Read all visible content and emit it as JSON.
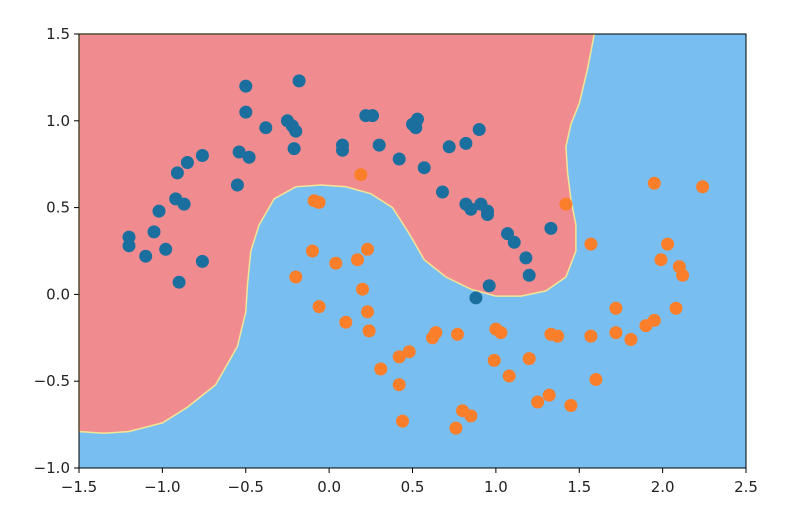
{
  "chart_data": {
    "type": "scatter",
    "title": "",
    "xlabel": "",
    "ylabel": "",
    "xlim": [
      -1.5,
      2.5
    ],
    "ylim": [
      -1.0,
      1.5
    ],
    "grid": false,
    "legend": "none",
    "xticks": [
      -1.5,
      -1.0,
      -0.5,
      0.0,
      0.5,
      1.0,
      1.5,
      2.0,
      2.5
    ],
    "xtick_labels": [
      "−1.5",
      "−1.0",
      "−0.5",
      "0.0",
      "0.5",
      "1.0",
      "1.5",
      "2.0",
      "2.5"
    ],
    "yticks": [
      -1.0,
      -0.5,
      0.0,
      0.5,
      1.0,
      1.5
    ],
    "ytick_labels": [
      "−1.0",
      "−0.5",
      "0.0",
      "0.5",
      "1.0",
      "1.5"
    ],
    "regions": [
      {
        "class": 0,
        "color": "#f08c90",
        "boundary": [
          [
            1.59,
            1.5
          ],
          [
            1.55,
            1.3
          ],
          [
            1.5,
            1.1
          ],
          [
            1.45,
            0.98
          ],
          [
            1.42,
            0.85
          ],
          [
            1.43,
            0.7
          ],
          [
            1.45,
            0.55
          ],
          [
            1.48,
            0.4
          ],
          [
            1.48,
            0.25
          ],
          [
            1.42,
            0.1
          ],
          [
            1.3,
            0.02
          ],
          [
            1.15,
            -0.01
          ],
          [
            1.0,
            -0.01
          ],
          [
            0.85,
            0.03
          ],
          [
            0.7,
            0.1
          ],
          [
            0.57,
            0.2
          ],
          [
            0.48,
            0.35
          ],
          [
            0.38,
            0.5
          ],
          [
            0.25,
            0.58
          ],
          [
            0.1,
            0.62
          ],
          [
            -0.05,
            0.63
          ],
          [
            -0.2,
            0.62
          ],
          [
            -0.33,
            0.55
          ],
          [
            -0.42,
            0.4
          ],
          [
            -0.47,
            0.25
          ],
          [
            -0.49,
            0.05
          ],
          [
            -0.5,
            -0.1
          ],
          [
            -0.55,
            -0.3
          ],
          [
            -0.68,
            -0.52
          ],
          [
            -0.85,
            -0.65
          ],
          [
            -1.0,
            -0.74
          ],
          [
            -1.2,
            -0.79
          ],
          [
            -1.35,
            -0.8
          ],
          [
            -1.5,
            -0.79
          ]
        ]
      },
      {
        "class": 1,
        "color": "#79bef0"
      }
    ],
    "series": [
      {
        "class": 0,
        "color": "#1a6f9f",
        "points": [
          [
            -1.2,
            0.33
          ],
          [
            -1.2,
            0.28
          ],
          [
            -1.1,
            0.22
          ],
          [
            -1.05,
            0.36
          ],
          [
            -1.02,
            0.48
          ],
          [
            -0.98,
            0.26
          ],
          [
            -0.92,
            0.55
          ],
          [
            -0.87,
            0.52
          ],
          [
            -0.9,
            0.07
          ],
          [
            -0.91,
            0.7
          ],
          [
            -0.85,
            0.76
          ],
          [
            -0.76,
            0.8
          ],
          [
            -0.76,
            0.19
          ],
          [
            -0.55,
            0.63
          ],
          [
            -0.54,
            0.82
          ],
          [
            -0.48,
            0.79
          ],
          [
            -0.5,
            1.2
          ],
          [
            -0.5,
            1.05
          ],
          [
            -0.38,
            0.96
          ],
          [
            -0.25,
            1.0
          ],
          [
            -0.22,
            0.97
          ],
          [
            -0.2,
            0.94
          ],
          [
            -0.21,
            0.84
          ],
          [
            -0.18,
            1.23
          ],
          [
            0.08,
            0.86
          ],
          [
            0.08,
            0.83
          ],
          [
            0.22,
            1.03
          ],
          [
            0.26,
            1.03
          ],
          [
            0.3,
            0.86
          ],
          [
            0.42,
            0.78
          ],
          [
            0.5,
            0.98
          ],
          [
            0.52,
            0.99
          ],
          [
            0.53,
            1.01
          ],
          [
            0.52,
            0.96
          ],
          [
            0.57,
            0.73
          ],
          [
            0.68,
            0.59
          ],
          [
            0.72,
            0.85
          ],
          [
            0.82,
            0.87
          ],
          [
            0.9,
            0.95
          ],
          [
            0.82,
            0.52
          ],
          [
            0.85,
            0.49
          ],
          [
            0.91,
            0.52
          ],
          [
            0.95,
            0.46
          ],
          [
            0.95,
            0.48
          ],
          [
            1.07,
            0.35
          ],
          [
            1.11,
            0.3
          ],
          [
            1.18,
            0.21
          ],
          [
            1.2,
            0.11
          ],
          [
            1.33,
            0.38
          ],
          [
            0.96,
            0.05
          ],
          [
            0.88,
            -0.02
          ]
        ]
      },
      {
        "class": 1,
        "color": "#fb7f2a",
        "points": [
          [
            -0.09,
            0.54
          ],
          [
            -0.06,
            0.53
          ],
          [
            -0.1,
            0.25
          ],
          [
            -0.2,
            0.1
          ],
          [
            -0.06,
            -0.07
          ],
          [
            0.04,
            0.18
          ],
          [
            0.1,
            -0.16
          ],
          [
            0.17,
            0.2
          ],
          [
            0.19,
            0.69
          ],
          [
            0.23,
            0.26
          ],
          [
            0.2,
            0.03
          ],
          [
            0.23,
            -0.1
          ],
          [
            0.24,
            -0.21
          ],
          [
            0.31,
            -0.43
          ],
          [
            0.42,
            -0.36
          ],
          [
            0.42,
            -0.52
          ],
          [
            0.44,
            -0.73
          ],
          [
            0.48,
            -0.33
          ],
          [
            0.62,
            -0.25
          ],
          [
            0.64,
            -0.22
          ],
          [
            0.77,
            -0.23
          ],
          [
            0.8,
            -0.67
          ],
          [
            0.85,
            -0.7
          ],
          [
            0.76,
            -0.77
          ],
          [
            0.99,
            -0.38
          ],
          [
            1.0,
            -0.2
          ],
          [
            1.03,
            -0.22
          ],
          [
            1.08,
            -0.47
          ],
          [
            1.2,
            -0.37
          ],
          [
            1.25,
            -0.62
          ],
          [
            1.32,
            -0.58
          ],
          [
            1.33,
            -0.23
          ],
          [
            1.37,
            -0.24
          ],
          [
            1.42,
            0.52
          ],
          [
            1.45,
            -0.64
          ],
          [
            1.57,
            0.29
          ],
          [
            1.57,
            -0.24
          ],
          [
            1.6,
            -0.49
          ],
          [
            1.72,
            -0.08
          ],
          [
            1.72,
            -0.22
          ],
          [
            1.81,
            -0.26
          ],
          [
            1.9,
            -0.18
          ],
          [
            1.95,
            -0.15
          ],
          [
            1.95,
            0.64
          ],
          [
            1.99,
            0.2
          ],
          [
            2.03,
            0.29
          ],
          [
            2.08,
            -0.08
          ],
          [
            2.1,
            0.16
          ],
          [
            2.12,
            0.11
          ],
          [
            2.24,
            0.62
          ]
        ]
      }
    ]
  }
}
